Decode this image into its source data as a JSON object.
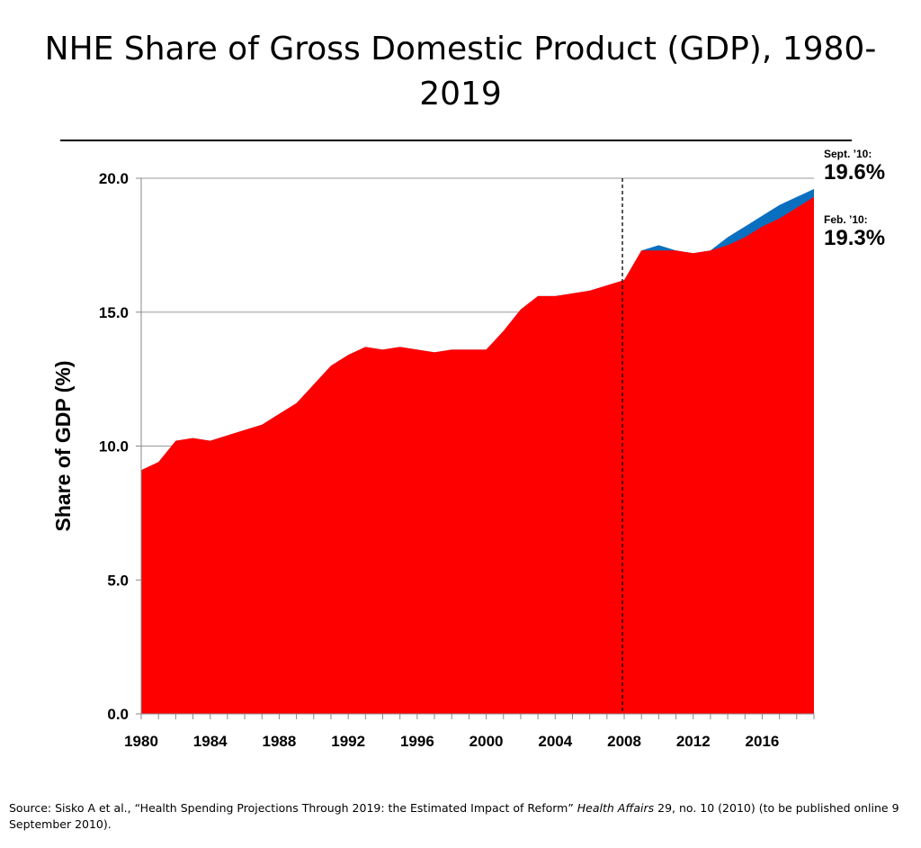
{
  "title": "NHE Share of Gross Domestic Product (GDP), 1980-2019",
  "source": {
    "prefix": "Source: Sisko A et al., “Health Spending Projections Through 2019: the Estimated Impact of Reform” ",
    "journal": "Health Affairs",
    "suffix": " 29, no. 10 (2010) (to be published online 9 September 2010)."
  },
  "annotations": {
    "sept_label": "Sept. ’10:",
    "sept_value": "19.6%",
    "feb_label": "Feb. ’10:",
    "feb_value": "19.3%"
  },
  "colors": {
    "feb_series": "#ff0000",
    "sept_series": "#0b6fbf",
    "grid": "#9a9a9a",
    "axis": "#888888"
  },
  "chart_data": {
    "type": "area",
    "ylabel": "Share of GDP (%)",
    "xlabel": "",
    "ylim": [
      0,
      20
    ],
    "yticks": [
      "0.0",
      "5.0",
      "10.0",
      "15.0",
      "20.0"
    ],
    "xticks": [
      "1980",
      "1984",
      "1988",
      "1992",
      "1996",
      "2000",
      "2004",
      "2008",
      "2012",
      "2016"
    ],
    "grid": true,
    "projection_start": 2008,
    "x": [
      1980,
      1981,
      1982,
      1983,
      1984,
      1985,
      1986,
      1987,
      1988,
      1989,
      1990,
      1991,
      1992,
      1993,
      1994,
      1995,
      1996,
      1997,
      1998,
      1999,
      2000,
      2001,
      2002,
      2003,
      2004,
      2005,
      2006,
      2007,
      2008,
      2009,
      2010,
      2011,
      2012,
      2013,
      2014,
      2015,
      2016,
      2017,
      2018,
      2019
    ],
    "series": [
      {
        "name": "Sept. ’10",
        "values": [
          9.1,
          9.4,
          10.2,
          10.3,
          10.2,
          10.4,
          10.6,
          10.8,
          11.2,
          11.6,
          12.3,
          13.0,
          13.4,
          13.7,
          13.6,
          13.7,
          13.6,
          13.5,
          13.6,
          13.6,
          13.6,
          14.3,
          15.1,
          15.6,
          15.6,
          15.7,
          15.8,
          16.0,
          16.2,
          17.3,
          17.5,
          17.3,
          17.2,
          17.3,
          17.8,
          18.2,
          18.6,
          19.0,
          19.3,
          19.6
        ]
      },
      {
        "name": "Feb. ’10",
        "values": [
          9.1,
          9.4,
          10.2,
          10.3,
          10.2,
          10.4,
          10.6,
          10.8,
          11.2,
          11.6,
          12.3,
          13.0,
          13.4,
          13.7,
          13.6,
          13.7,
          13.6,
          13.5,
          13.6,
          13.6,
          13.6,
          14.3,
          15.1,
          15.6,
          15.6,
          15.7,
          15.8,
          16.0,
          16.2,
          17.3,
          17.3,
          17.3,
          17.2,
          17.3,
          17.5,
          17.8,
          18.2,
          18.5,
          18.9,
          19.3
        ]
      }
    ]
  }
}
